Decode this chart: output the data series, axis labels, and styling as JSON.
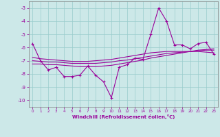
{
  "xlabel": "Windchill (Refroidissement éolien,°C)",
  "background_color": "#cce8e8",
  "line_color": "#990099",
  "grid_color": "#99cccc",
  "x_data": [
    0,
    1,
    2,
    3,
    4,
    5,
    6,
    7,
    8,
    9,
    10,
    11,
    12,
    13,
    14,
    15,
    16,
    17,
    18,
    19,
    20,
    21,
    22,
    23
  ],
  "y_main": [
    -5.7,
    -7.0,
    -7.7,
    -7.5,
    -8.2,
    -8.2,
    -8.1,
    -7.4,
    -8.1,
    -8.6,
    -9.8,
    -7.5,
    -7.3,
    -6.8,
    -6.9,
    -5.0,
    -3.0,
    -4.0,
    -5.8,
    -5.8,
    -6.1,
    -5.7,
    -5.6,
    -6.5
  ],
  "y_reg1": [
    -7.0,
    -7.05,
    -7.1,
    -7.1,
    -7.15,
    -7.2,
    -7.2,
    -7.2,
    -7.2,
    -7.15,
    -7.1,
    -7.0,
    -6.95,
    -6.85,
    -6.75,
    -6.65,
    -6.55,
    -6.45,
    -6.4,
    -6.35,
    -6.3,
    -6.25,
    -6.2,
    -6.2
  ],
  "y_reg2": [
    -6.75,
    -6.85,
    -6.9,
    -6.95,
    -7.0,
    -7.05,
    -7.05,
    -7.05,
    -7.0,
    -6.95,
    -6.9,
    -6.8,
    -6.7,
    -6.6,
    -6.5,
    -6.4,
    -6.35,
    -6.3,
    -6.3,
    -6.3,
    -6.3,
    -6.3,
    -6.35,
    -6.4
  ],
  "y_reg3": [
    -7.25,
    -7.25,
    -7.3,
    -7.3,
    -7.35,
    -7.4,
    -7.45,
    -7.45,
    -7.45,
    -7.4,
    -7.35,
    -7.25,
    -7.15,
    -7.05,
    -6.95,
    -6.8,
    -6.7,
    -6.6,
    -6.5,
    -6.4,
    -6.3,
    -6.2,
    -6.15,
    -6.1
  ],
  "ylim": [
    -10.5,
    -2.5
  ],
  "xlim": [
    -0.5,
    23.5
  ],
  "yticks": [
    -10,
    -9,
    -8,
    -7,
    -6,
    -5,
    -4,
    -3
  ],
  "xticks": [
    0,
    1,
    2,
    3,
    4,
    5,
    6,
    7,
    8,
    9,
    10,
    11,
    12,
    13,
    14,
    15,
    16,
    17,
    18,
    19,
    20,
    21,
    22,
    23
  ]
}
